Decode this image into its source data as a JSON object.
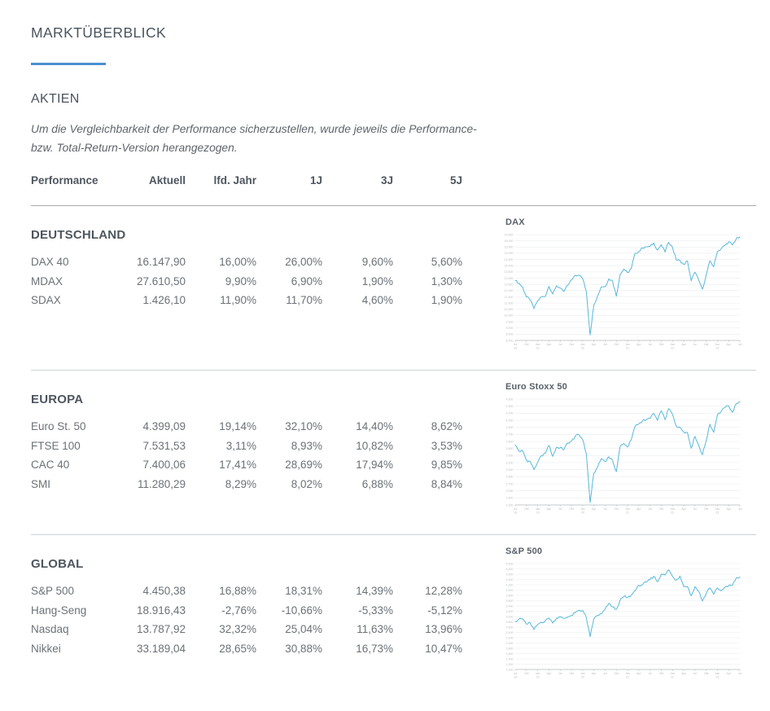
{
  "page": {
    "title": "MARKTÜBERBLICK",
    "subtitle": "AKTIEN",
    "note_lines": [
      "Um die Vergleichbarkeit der Performance sicherzustellen, wurde jeweils die Performance-",
      "bzw. Total-Return-Version herangezogen."
    ]
  },
  "table": {
    "headers": [
      "Performance",
      "Aktuell",
      "lfd. Jahr",
      "1J",
      "3J",
      "5J"
    ]
  },
  "sections": [
    {
      "title": "DEUTSCHLAND",
      "rows": [
        {
          "name": "DAX 40",
          "cells": [
            "16.147,90",
            "16,00%",
            "26,00%",
            "9,60%",
            "5,60%"
          ]
        },
        {
          "name": "MDAX",
          "cells": [
            "27.610,50",
            "9,90%",
            "6,90%",
            "1,90%",
            "1,30%"
          ]
        },
        {
          "name": "SDAX",
          "cells": [
            "1.426,10",
            "11,90%",
            "11,70%",
            "4,60%",
            "1,90%"
          ]
        }
      ]
    },
    {
      "title": "EUROPA",
      "rows": [
        {
          "name": "Euro St. 50",
          "cells": [
            "4.399,09",
            "19,14%",
            "32,10%",
            "14,40%",
            "8,62%"
          ]
        },
        {
          "name": "FTSE 100",
          "cells": [
            "7.531,53",
            "3,11%",
            "8,93%",
            "10,82%",
            "3,53%"
          ]
        },
        {
          "name": "CAC 40",
          "cells": [
            "7.400,06",
            "17,41%",
            "28,69%",
            "17,94%",
            "9,85%"
          ]
        },
        {
          "name": "SMI",
          "cells": [
            "11.280,29",
            "8,29%",
            "8,02%",
            "6,88%",
            "8,84%"
          ]
        }
      ]
    },
    {
      "title": "GLOBAL",
      "rows": [
        {
          "name": "S&P 500",
          "cells": [
            "4.450,38",
            "16,88%",
            "18,31%",
            "14,39%",
            "12,28%"
          ]
        },
        {
          "name": "Hang-Seng",
          "cells": [
            "18.916,43",
            "-2,76%",
            "-10,66%",
            "-5,33%",
            "-5,12%"
          ]
        },
        {
          "name": "Nasdaq",
          "cells": [
            "13.787,92",
            "32,32%",
            "25,04%",
            "11,63%",
            "13,96%"
          ]
        },
        {
          "name": "Nikkei",
          "cells": [
            "33.189,04",
            "28,65%",
            "30,88%",
            "16,73%",
            "10,47%"
          ]
        }
      ]
    }
  ],
  "colors": {
    "accent": "#4a90d2",
    "chart_line": "#57b8da",
    "grid": "#eaecee",
    "axis": "#b6babe",
    "tick_label": "#b9bdc2",
    "heading": "#4b545e"
  },
  "chart_data": [
    {
      "type": "line",
      "title": "DAX",
      "x_start": "2018-07",
      "x_interval": "monthly",
      "ylim": [
        8000,
        16500
      ],
      "y_step": 500,
      "grid": true,
      "legend": false,
      "x_ticks": [
        [
          "Jul",
          "18",
          0
        ],
        [
          "Okt",
          "",
          3
        ],
        [
          "Jan",
          "19",
          6
        ],
        [
          "Apr",
          "",
          9
        ],
        [
          "Jul",
          "",
          12
        ],
        [
          "Okt",
          "",
          15
        ],
        [
          "Jan",
          "20",
          18
        ],
        [
          "Apr",
          "",
          21
        ],
        [
          "Jul",
          "",
          24
        ],
        [
          "Okt",
          "",
          27
        ],
        [
          "Jan",
          "21",
          30
        ],
        [
          "Apr",
          "",
          33
        ],
        [
          "Jul",
          "",
          36
        ],
        [
          "Okt",
          "",
          39
        ],
        [
          "Jan",
          "22",
          42
        ],
        [
          "Apr",
          "",
          45
        ],
        [
          "Jul",
          "",
          48
        ],
        [
          "Okt",
          "",
          51
        ],
        [
          "Jan",
          "23",
          54
        ],
        [
          "Apr",
          "",
          57
        ],
        [
          "Jul",
          "",
          60
        ]
      ],
      "values": [
        12800,
        12600,
        12250,
        11500,
        11250,
        10560,
        11200,
        11500,
        11526,
        12344,
        11727,
        12399,
        12189,
        11939,
        12428,
        12867,
        13236,
        13249,
        12982,
        11890,
        8442,
        10862,
        11587,
        12311,
        12313,
        12945,
        12761,
        11556,
        13291,
        13719,
        13433,
        13786,
        15008,
        15136,
        15421,
        15531,
        15544,
        15835,
        15261,
        15689,
        15100,
        15885,
        15471,
        14461,
        14415,
        14098,
        14388,
        12784,
        13484,
        12835,
        12114,
        13254,
        14397,
        13924,
        15128,
        15365,
        15629,
        15922,
        15664,
        16148,
        16300
      ]
    },
    {
      "type": "line",
      "title": "Euro Stoxx 50",
      "x_start": "2018-07",
      "x_interval": "monthly",
      "ylim": [
        2250,
        4500
      ],
      "y_step": 150,
      "grid": true,
      "legend": false,
      "x_ticks": [
        [
          "Jul",
          "18",
          0
        ],
        [
          "Okt",
          "",
          3
        ],
        [
          "Jan",
          "19",
          6
        ],
        [
          "Apr",
          "",
          9
        ],
        [
          "Jul",
          "",
          12
        ],
        [
          "Okt",
          "",
          15
        ],
        [
          "Jan",
          "20",
          18
        ],
        [
          "Apr",
          "",
          21
        ],
        [
          "Jul",
          "",
          24
        ],
        [
          "Okt",
          "",
          27
        ],
        [
          "Jan",
          "21",
          30
        ],
        [
          "Apr",
          "",
          33
        ],
        [
          "Jul",
          "",
          36
        ],
        [
          "Okt",
          "",
          39
        ],
        [
          "Jan",
          "22",
          42
        ],
        [
          "Apr",
          "",
          45
        ],
        [
          "Jul",
          "",
          48
        ],
        [
          "Okt",
          "",
          51
        ],
        [
          "Jan",
          "23",
          54
        ],
        [
          "Apr",
          "",
          57
        ],
        [
          "Jul",
          "",
          60
        ]
      ],
      "values": [
        3525,
        3393,
        3399,
        3197,
        3173,
        3001,
        3159,
        3298,
        3352,
        3515,
        3280,
        3474,
        3467,
        3427,
        3569,
        3604,
        3704,
        3745,
        3641,
        3329,
        2302,
        2928,
        3050,
        3234,
        3174,
        3272,
        3194,
        2958,
        3493,
        3553,
        3481,
        3636,
        3919,
        3974,
        4039,
        4064,
        4089,
        4196,
        4048,
        4251,
        4063,
        4298,
        4174,
        3924,
        3903,
        3803,
        3789,
        3455,
        3708,
        3517,
        3318,
        3618,
        3965,
        3794,
        4163,
        4238,
        4315,
        4359,
        4218,
        4399,
        4450
      ]
    },
    {
      "type": "line",
      "title": "S&P 500",
      "x_start": "2018-07",
      "x_interval": "monthly",
      "ylim": [
        1000,
        5000
      ],
      "y_step": 200,
      "grid": true,
      "legend": false,
      "x_ticks": [
        [
          "Jul",
          "18",
          0
        ],
        [
          "Okt",
          "",
          3
        ],
        [
          "Jan",
          "19",
          6
        ],
        [
          "Apr",
          "",
          9
        ],
        [
          "Jul",
          "",
          12
        ],
        [
          "Okt",
          "",
          15
        ],
        [
          "Jan",
          "20",
          18
        ],
        [
          "Apr",
          "",
          21
        ],
        [
          "Jul",
          "",
          24
        ],
        [
          "Okt",
          "",
          27
        ],
        [
          "Jan",
          "21",
          30
        ],
        [
          "Apr",
          "",
          33
        ],
        [
          "Jul",
          "",
          36
        ],
        [
          "Okt",
          "",
          39
        ],
        [
          "Jan",
          "22",
          42
        ],
        [
          "Apr",
          "",
          45
        ],
        [
          "Jul",
          "",
          48
        ],
        [
          "Okt",
          "",
          51
        ],
        [
          "Jan",
          "23",
          54
        ],
        [
          "Apr",
          "",
          57
        ],
        [
          "Jul",
          "",
          60
        ]
      ],
      "values": [
        2816,
        2902,
        2914,
        2712,
        2760,
        2507,
        2704,
        2784,
        2834,
        2946,
        2752,
        2942,
        2980,
        2926,
        2977,
        3038,
        3141,
        3231,
        3226,
        2954,
        2237,
        2912,
        3044,
        3100,
        3271,
        3500,
        3363,
        3270,
        3622,
        3756,
        3714,
        3811,
        3973,
        4181,
        4204,
        4298,
        4395,
        4523,
        4308,
        4605,
        4567,
        4766,
        4516,
        4374,
        4530,
        4132,
        4132,
        3785,
        4130,
        3955,
        3586,
        3872,
        4080,
        3840,
        4077,
        3970,
        4109,
        4169,
        4180,
        4450,
        4494
      ]
    }
  ]
}
